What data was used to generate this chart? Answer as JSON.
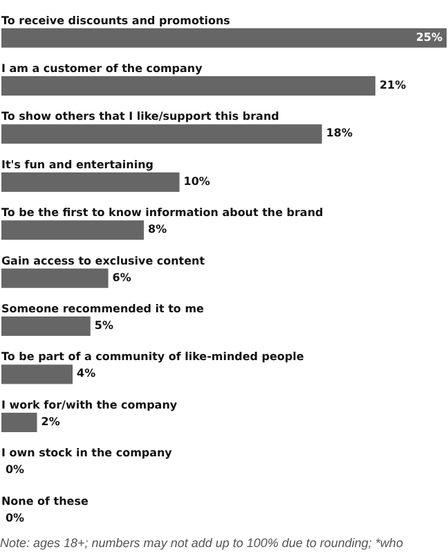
{
  "chart_data": {
    "type": "bar",
    "orientation": "horizontal",
    "categories": [
      "To receive discounts and promotions",
      "I am a customer of the company",
      "To show others that I like/support this brand",
      "It's fun and entertaining",
      "To be the first to know information about the brand",
      "Gain access to exclusive content",
      "Someone recommended it to me",
      "To be part of a community of like-minded people",
      "I work for/with the company",
      "I own stock in the company",
      "None of these"
    ],
    "values": [
      25,
      21,
      18,
      10,
      8,
      6,
      5,
      4,
      2,
      0,
      0
    ],
    "value_labels": [
      "25%",
      "21%",
      "18%",
      "10%",
      "8%",
      "6%",
      "5%",
      "4%",
      "2%",
      "0%",
      "0%"
    ],
    "color": "#666666",
    "annotations": [
      "Note: ages 18+; numbers may not add up to 100% due to rounding; *who"
    ]
  }
}
